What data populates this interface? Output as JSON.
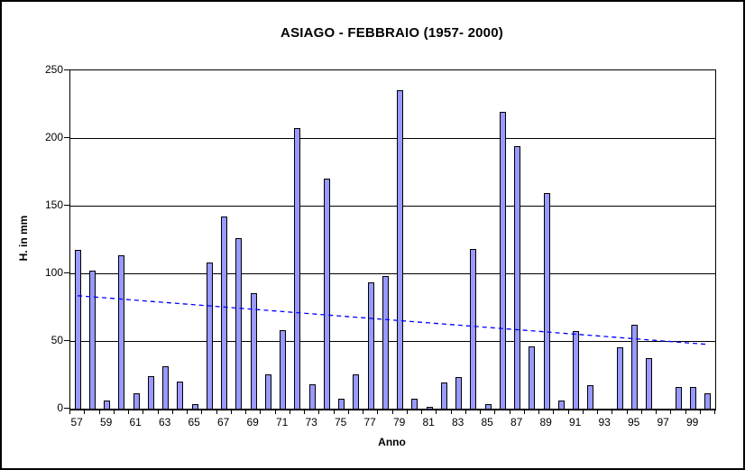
{
  "title": "ASIAGO - FEBBRAIO (1957- 2000)",
  "colors": {
    "bar_fill": "#9999FF",
    "bar_border": "#000000",
    "trend_line": "#0000FF",
    "grid": "#000000",
    "text": "#000000",
    "background": "#FFFFFF"
  },
  "chart_data": {
    "type": "bar",
    "title": "ASIAGO - FEBBRAIO (1957- 2000)",
    "xlabel": "Anno",
    "ylabel": "H. in mm",
    "ylim": [
      0,
      250
    ],
    "yticks": [
      0,
      50,
      100,
      150,
      200,
      250
    ],
    "grid": true,
    "legend_position": "none",
    "categories": [
      1957,
      1958,
      1959,
      1960,
      1961,
      1962,
      1963,
      1964,
      1965,
      1966,
      1967,
      1968,
      1969,
      1970,
      1971,
      1972,
      1973,
      1974,
      1975,
      1976,
      1977,
      1978,
      1979,
      1980,
      1981,
      1982,
      1983,
      1984,
      1985,
      1986,
      1987,
      1988,
      1989,
      1990,
      1991,
      1992,
      1993,
      1994,
      1995,
      1996,
      1997,
      1998,
      1999,
      2000
    ],
    "values": [
      117,
      102,
      6,
      113,
      11,
      24,
      31,
      20,
      3,
      108,
      142,
      126,
      85,
      25,
      58,
      207,
      18,
      170,
      7,
      25,
      93,
      98,
      235,
      7,
      1,
      19,
      23,
      118,
      3,
      219,
      194,
      46,
      159,
      6,
      57,
      17,
      0,
      45,
      62,
      37,
      0,
      16,
      16,
      11
    ],
    "xtick_labels": [
      "57",
      "59",
      "61",
      "63",
      "65",
      "67",
      "69",
      "71",
      "73",
      "75",
      "77",
      "79",
      "81",
      "83",
      "85",
      "87",
      "89",
      "91",
      "93",
      "95",
      "97",
      "99"
    ],
    "trendline": {
      "style": "dashed",
      "start_value": 83.5,
      "end_value": 47.5
    }
  }
}
